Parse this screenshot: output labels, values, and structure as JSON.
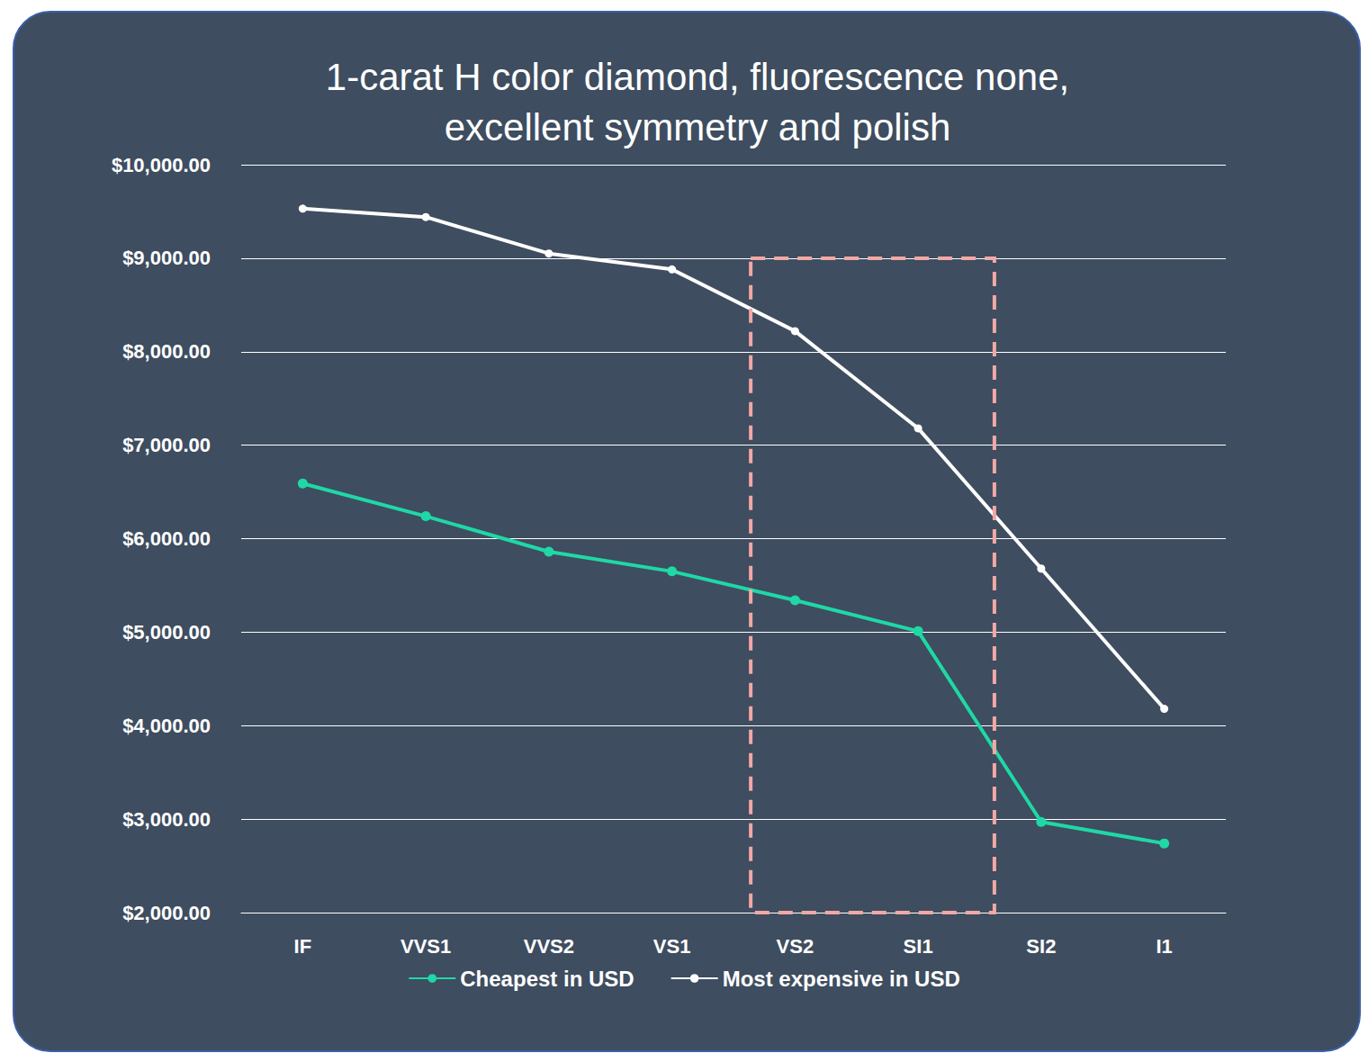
{
  "chart_data": {
    "type": "line",
    "title": "1-carat H color diamond, fluorescence none,\nexcellent symmetry and polish",
    "categories": [
      "IF",
      "VVS1",
      "VVS2",
      "VS1",
      "VS2",
      "SI1",
      "SI2",
      "I1"
    ],
    "series": [
      {
        "name": "Cheapest in USD",
        "color": "#1fd8a6",
        "marker": "circle",
        "values": [
          6590,
          6240,
          5860,
          5650,
          5340,
          5010,
          2970,
          2740
        ]
      },
      {
        "name": "Most expensive in USD",
        "color": "#ffffff",
        "marker": "circle",
        "values": [
          9530,
          9440,
          9050,
          8880,
          8220,
          7180,
          5680,
          4180
        ]
      }
    ],
    "ylim": [
      2000,
      10000
    ],
    "yticks": [
      {
        "value": 2000,
        "label": "$2,000.00"
      },
      {
        "value": 3000,
        "label": "$3,000.00"
      },
      {
        "value": 4000,
        "label": "$4,000.00"
      },
      {
        "value": 5000,
        "label": "$5,000.00"
      },
      {
        "value": 6000,
        "label": "$6,000.00"
      },
      {
        "value": 7000,
        "label": "$7,000.00"
      },
      {
        "value": 8000,
        "label": "$8,000.00"
      },
      {
        "value": 9000,
        "label": "$9,000.00"
      },
      {
        "value": 10000,
        "label": "$10,000.00"
      }
    ],
    "grid": true,
    "legend": "bottom"
  }
}
